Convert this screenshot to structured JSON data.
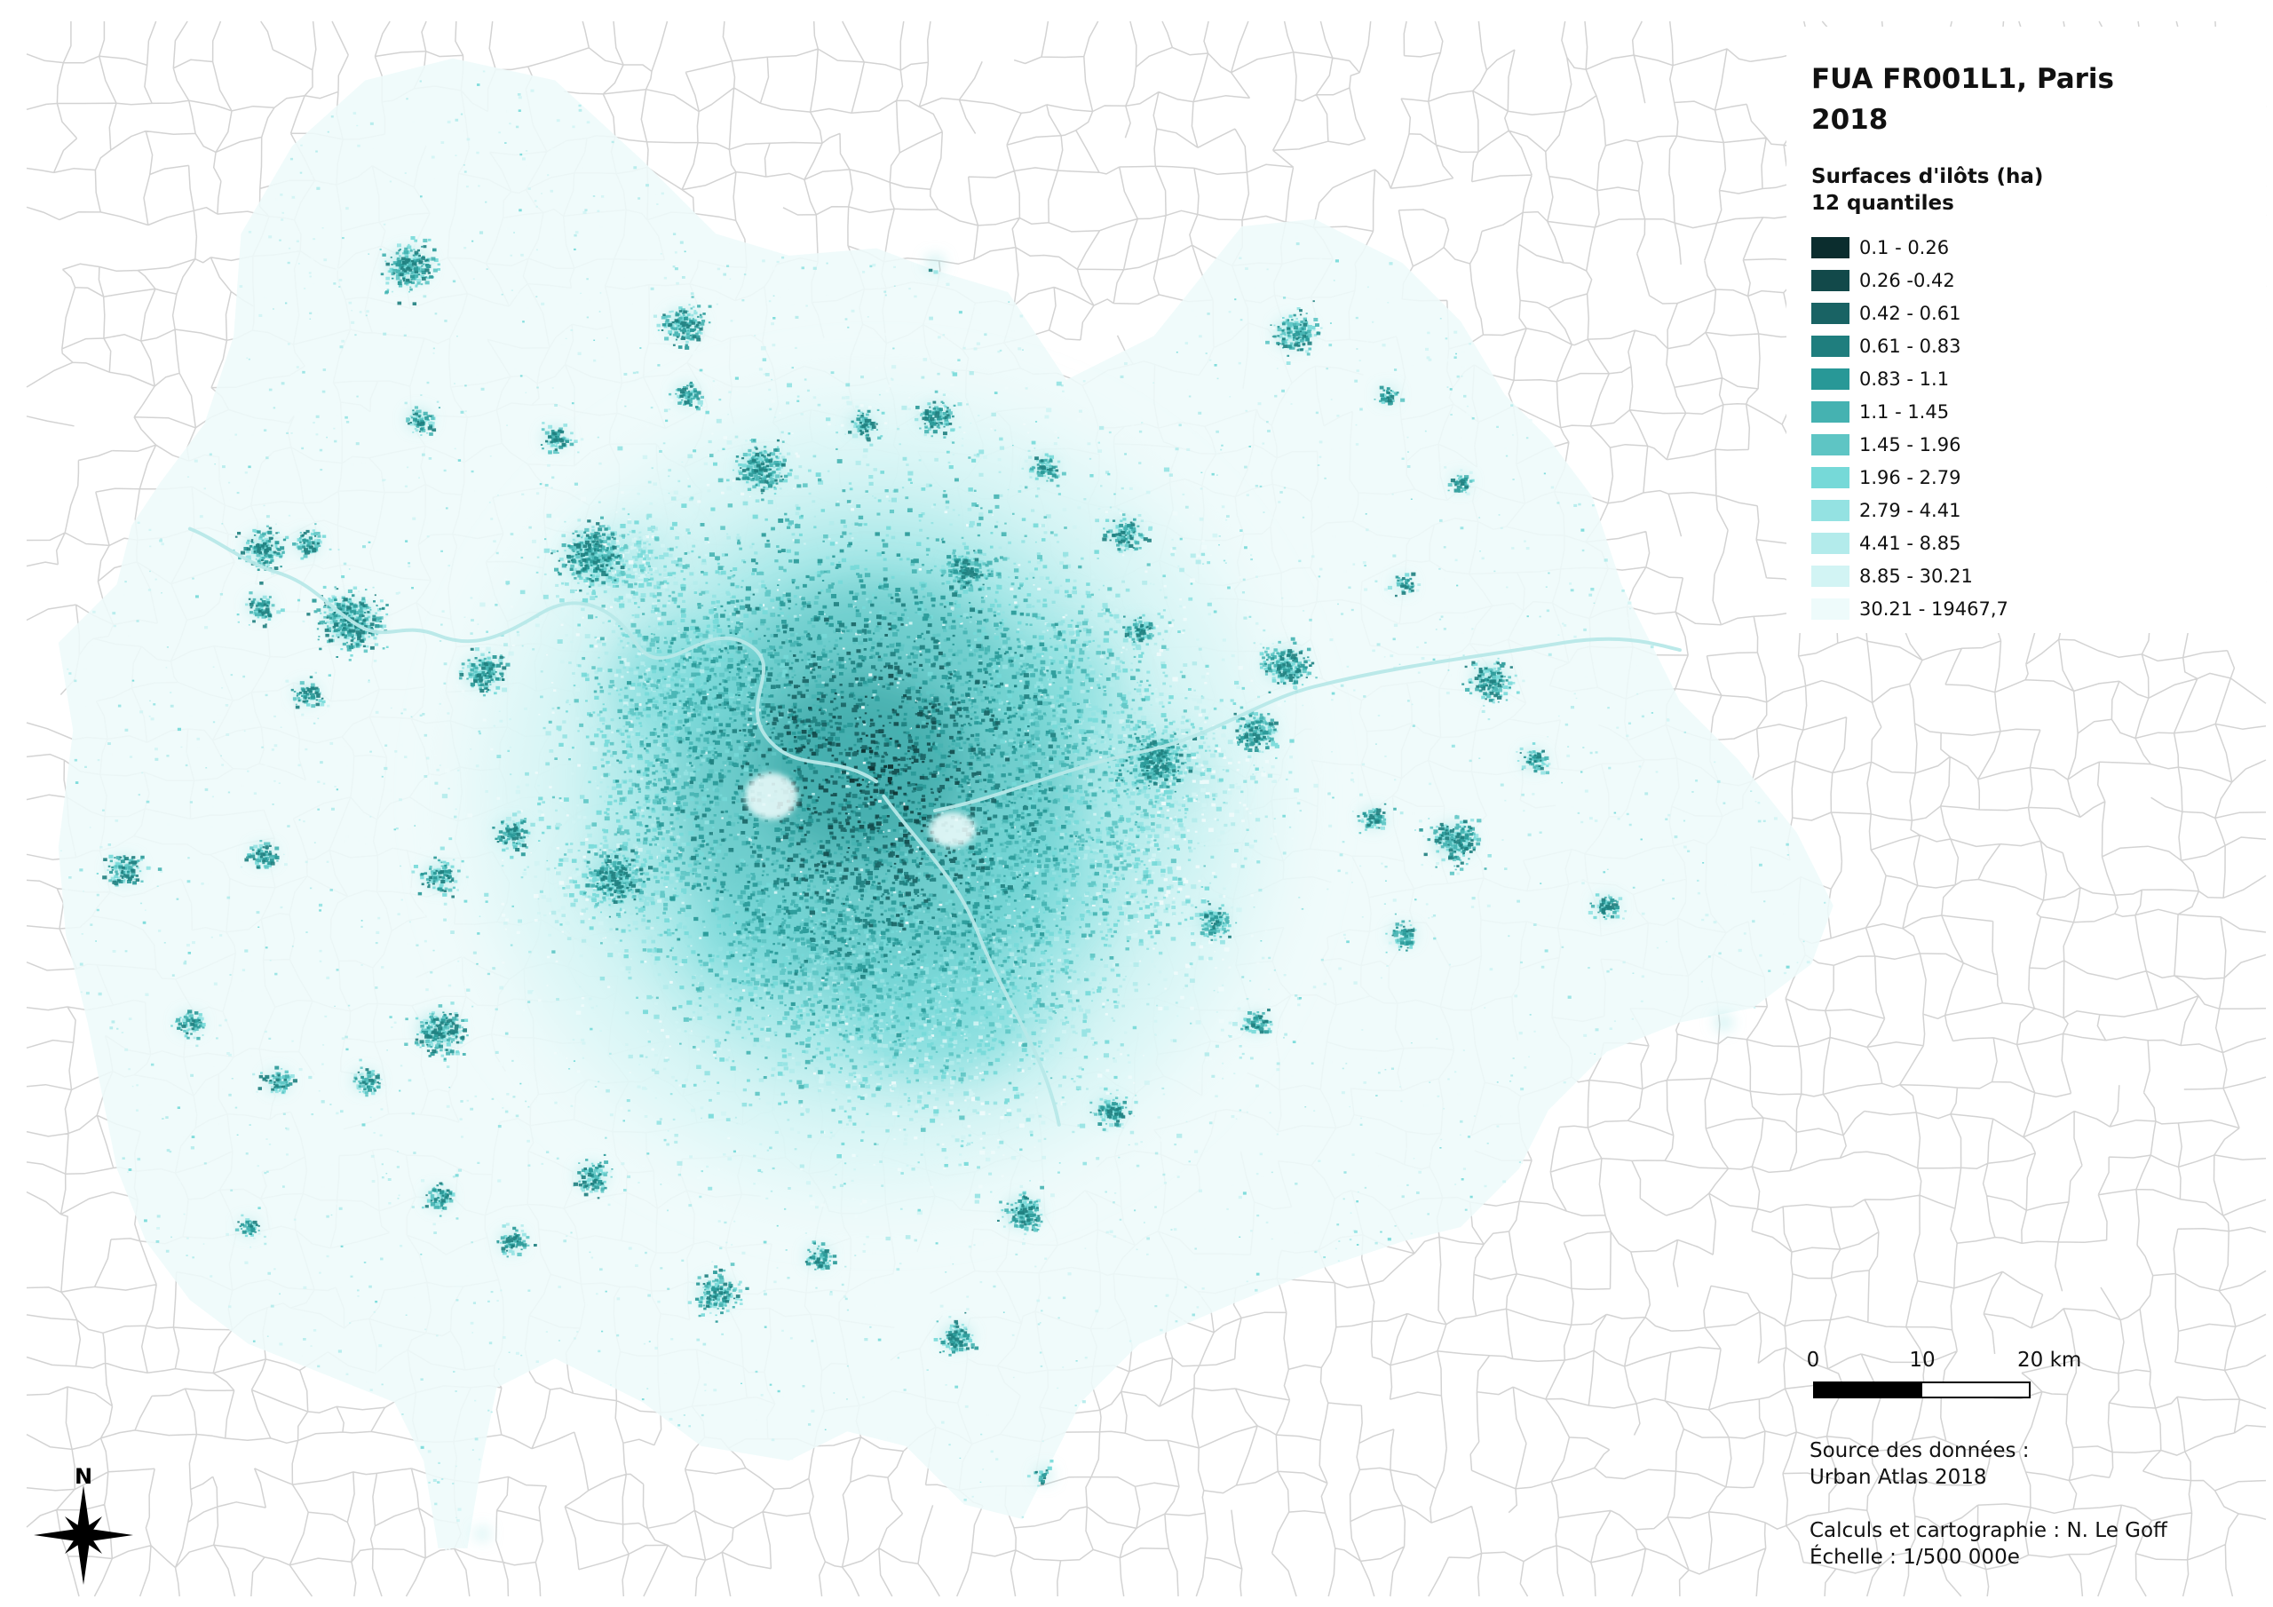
{
  "map": {
    "title": "FUA FR001L1, Paris",
    "year": "2018"
  },
  "legend": {
    "title": "Surfaces d'ilôts (ha)",
    "subtitle": "12 quantiles",
    "classes": [
      {
        "label": "0.1 - 0.26",
        "color": "#0b2d2e"
      },
      {
        "label": "0.26 -0.42",
        "color": "#12494a"
      },
      {
        "label": "0.42 - 0.61",
        "color": "#196364"
      },
      {
        "label": "0.61 - 0.83",
        "color": "#1f7e7e"
      },
      {
        "label": "0.83 - 1.1",
        "color": "#289897"
      },
      {
        "label": "1.1 - 1.45",
        "color": "#45b2b1"
      },
      {
        "label": "1.45 - 1.96",
        "color": "#5ec5c4"
      },
      {
        "label": "1.96 - 2.79",
        "color": "#76d9d8"
      },
      {
        "label": "2.79 - 4.41",
        "color": "#94e2e2"
      },
      {
        "label": "4.41 - 8.85",
        "color": "#b3ebeb"
      },
      {
        "label": "8.85 - 30.21",
        "color": "#d2f4f4"
      },
      {
        "label": "30.21 - 19467,7",
        "color": "#eefbfb"
      }
    ]
  },
  "scale_bar": {
    "labels": [
      "0",
      "10",
      "20 km"
    ]
  },
  "credits": {
    "source_label": "Source des données :",
    "source": "Urban Atlas 2018",
    "author": "Calculs et cartographie : N. Le Goff",
    "scale": "Échelle : 1/500 000e"
  },
  "north_arrow": {
    "label": "N",
    "icon": "compass-rose-icon"
  },
  "colors": {
    "background": "#ffffff",
    "boundaries": "#d3d3d3",
    "fua_fill": "#eefafa"
  }
}
